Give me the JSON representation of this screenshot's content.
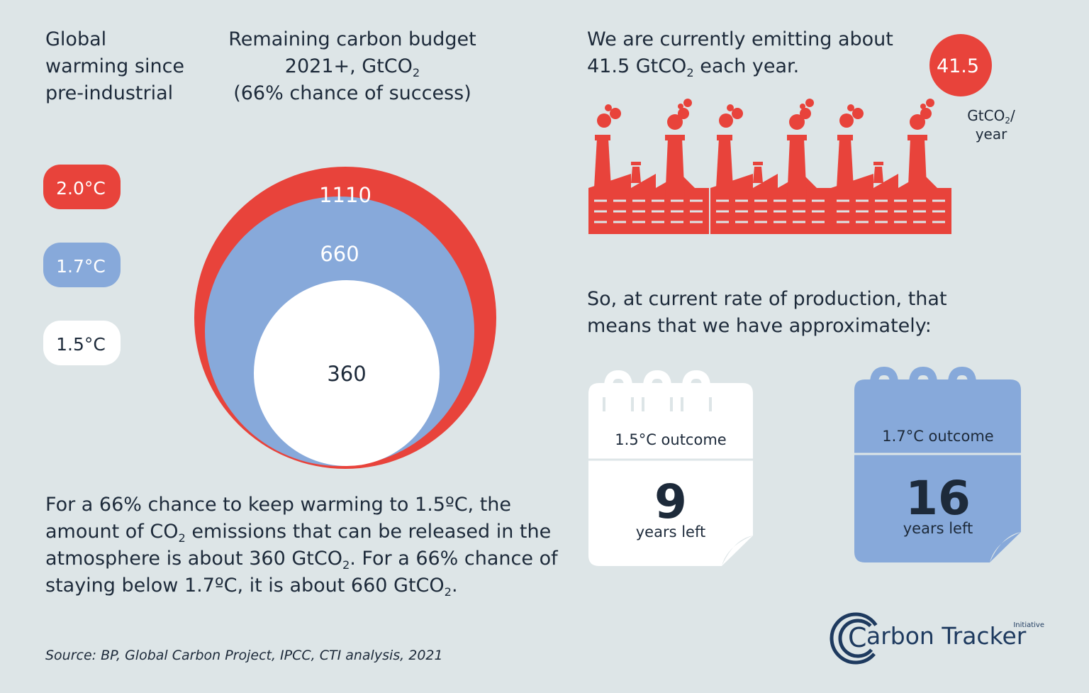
{
  "left_header": [
    "Global",
    "warming since",
    "pre-industrial"
  ],
  "budget_header": [
    [
      "Remaining carbon budget"
    ],
    [
      "2021+, GtCO",
      "2"
    ],
    [
      "(66% chance of success)"
    ]
  ],
  "legend": [
    {
      "label": "2.0°C",
      "color": "#e8433b",
      "text_color": "#ffffff"
    },
    {
      "label": "1.7°C",
      "color": "#87a9da",
      "text_color": "#ffffff"
    },
    {
      "label": "1.5°C",
      "color": "#ffffff",
      "text_color": "#1d2a3a"
    }
  ],
  "budget_circles": [
    {
      "value": 1110,
      "color": "#e8433b",
      "text_color": "#ffffff"
    },
    {
      "value": 660,
      "color": "#87a9da",
      "text_color": "#ffffff"
    },
    {
      "value": 360,
      "color": "#ffffff",
      "text_color": "#1d2a3a"
    }
  ],
  "emitting": [
    [
      "We are currently emitting about"
    ],
    [
      "41.5 GtCO",
      "2",
      " each year."
    ]
  ],
  "rate_badge": {
    "value": "41.5",
    "unit": [
      [
        "GtCO",
        "2",
        "/"
      ],
      [
        "year"
      ]
    ]
  },
  "rate_text": [
    [
      "So, at current rate of production, that"
    ],
    [
      "means that we have approximately:"
    ]
  ],
  "calendars": [
    {
      "outcome": "1.5°C outcome",
      "years": 9,
      "caption": "years left",
      "color": "#ffffff",
      "text_color": "#1d2a3a"
    },
    {
      "outcome": "1.7°C outcome",
      "years": 16,
      "caption": "years left",
      "color": "#87a9da",
      "text_color": "#1d2a3a"
    }
  ],
  "paragraph": [
    [
      "For a 66% chance to keep warming to 1.5ºC, the"
    ],
    [
      "amount of  CO",
      "2",
      " emissions that can be released in the"
    ],
    [
      "atmosphere is about 360 GtCO",
      "2",
      ". For a 66% chance of"
    ],
    [
      "staying below 1.7ºC, it is about 660 GtCO",
      "2",
      "."
    ]
  ],
  "source": "Source: BP, Global Carbon Project, IPCC, CTI analysis, 2021",
  "logo": {
    "initial": "C",
    "rest": "arbon Tracker",
    "tag": "Initiative"
  }
}
